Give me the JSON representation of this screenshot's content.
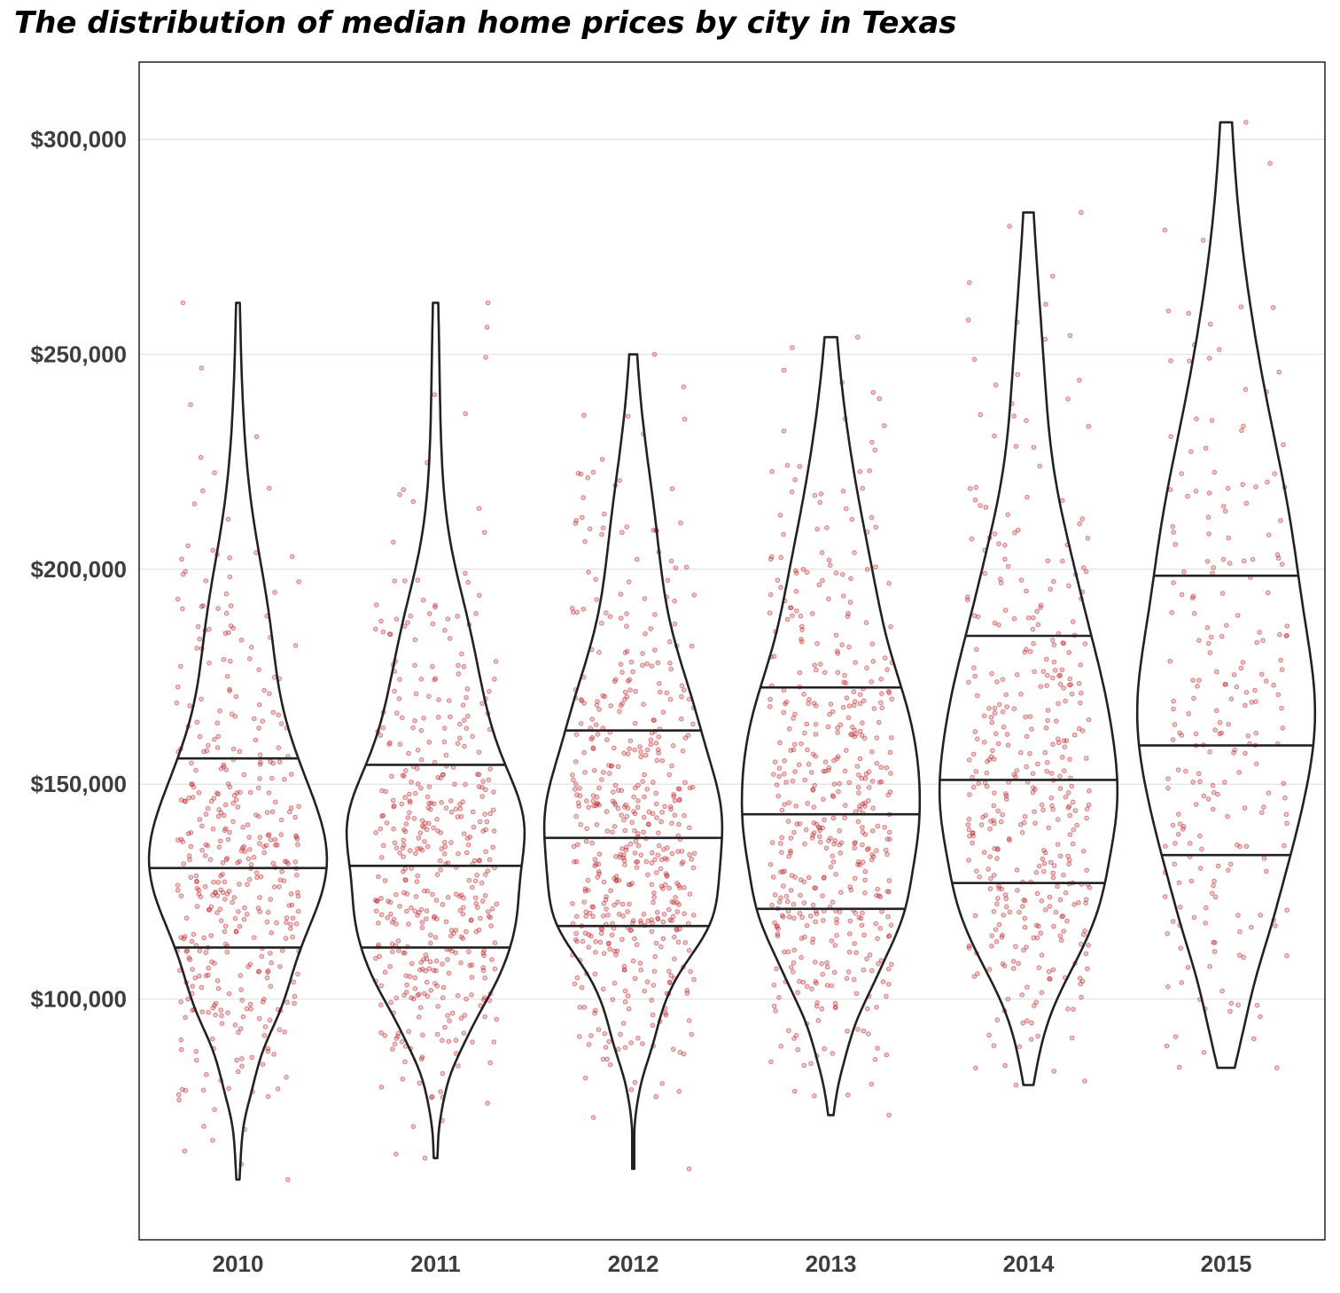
{
  "chart_data": {
    "type": "violin",
    "title": "The distribution of median home prices by city in Texas",
    "xlabel": "",
    "ylabel": "",
    "categories": [
      "2010",
      "2011",
      "2012",
      "2013",
      "2014",
      "2015"
    ],
    "y_tick_labels": [
      "$100,000",
      "$150,000",
      "$200,000",
      "$250,000",
      "$300,000"
    ],
    "y_ticks": [
      100000,
      150000,
      200000,
      250000,
      300000
    ],
    "ylim": [
      44000,
      318000
    ],
    "grid": {
      "horizontal": true,
      "vertical": false
    },
    "colors": {
      "points": "#c0282d",
      "violin_stroke": "#222222",
      "grid": "#e3e3e3"
    },
    "series": [
      {
        "category": "2010",
        "min": 58000,
        "max": 262000,
        "q1": 112000,
        "median": 130500,
        "q3": 156000,
        "n_points": 420
      },
      {
        "category": "2011",
        "min": 63000,
        "max": 262000,
        "q1": 112000,
        "median": 131000,
        "q3": 154500,
        "n_points": 450
      },
      {
        "category": "2012",
        "min": 60500,
        "max": 250000,
        "q1": 117000,
        "median": 137500,
        "q3": 162500,
        "n_points": 520
      },
      {
        "category": "2013",
        "min": 73000,
        "max": 254000,
        "q1": 121000,
        "median": 143000,
        "q3": 172500,
        "n_points": 480
      },
      {
        "category": "2014",
        "min": 80000,
        "max": 283000,
        "q1": 127000,
        "median": 151000,
        "q3": 184500,
        "n_points": 400
      },
      {
        "category": "2015",
        "min": 84000,
        "max": 304000,
        "q1": 133500,
        "median": 159000,
        "q3": 198500,
        "n_points": 230
      }
    ]
  }
}
